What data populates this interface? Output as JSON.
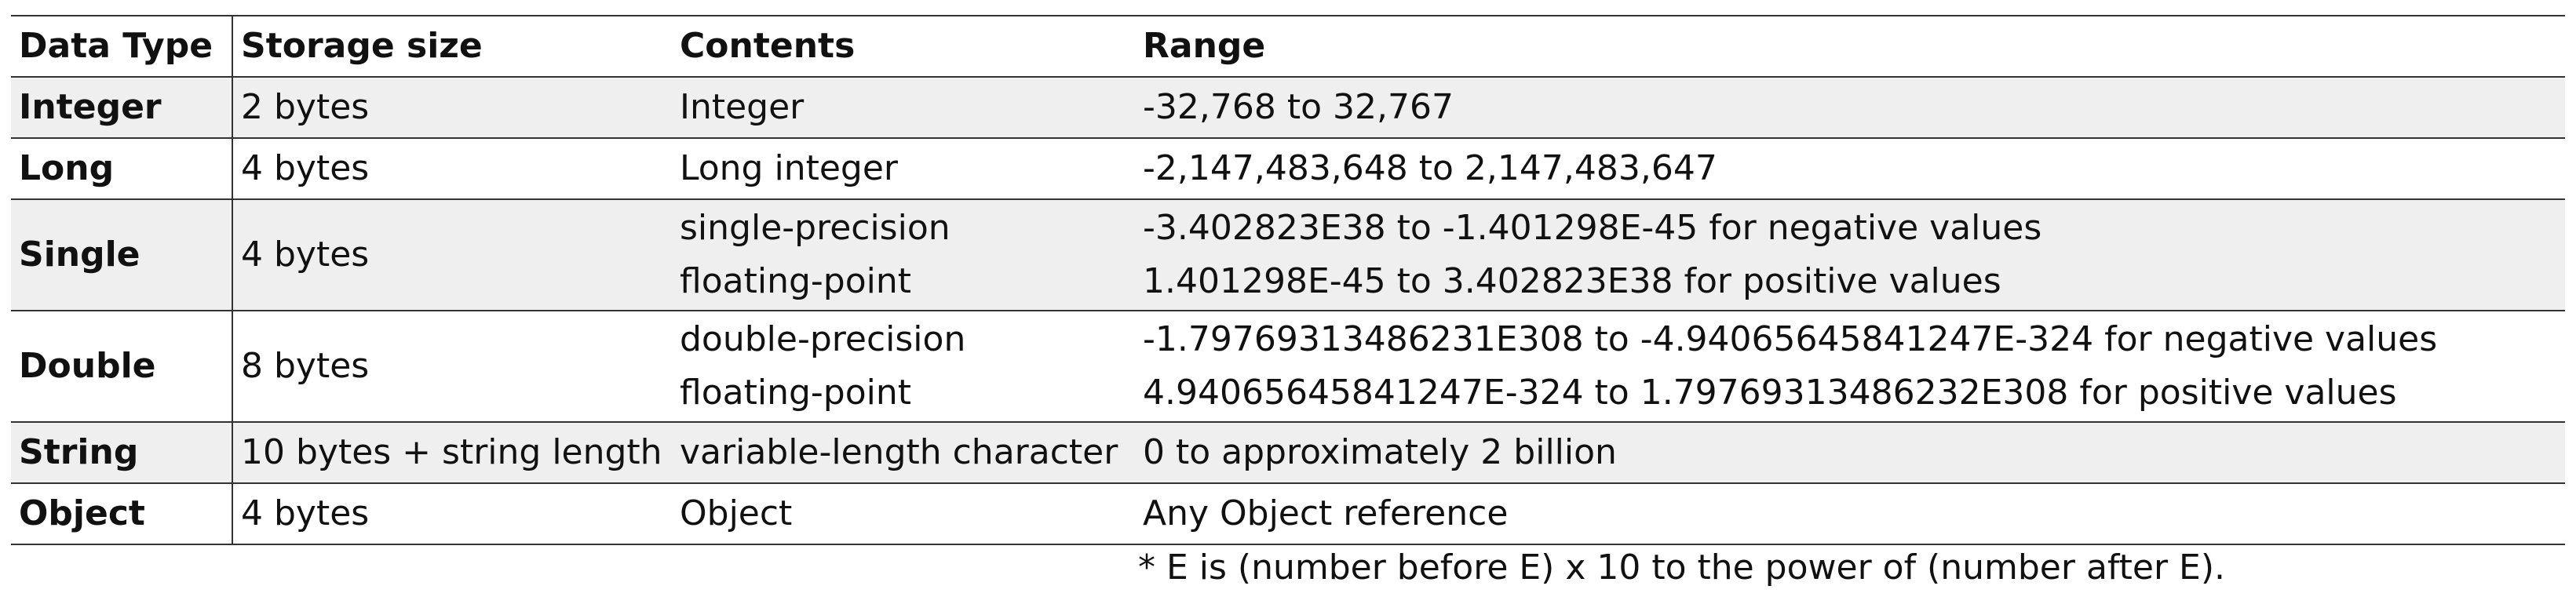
{
  "table": {
    "headers": {
      "type": "Data Type",
      "storage": "Storage size",
      "contents": "Contents",
      "range": "Range"
    },
    "rows": [
      {
        "type": "Integer",
        "storage": "2 bytes",
        "contents": [
          "Integer"
        ],
        "range": [
          "-32,768 to 32,767"
        ]
      },
      {
        "type": "Long",
        "storage": "4 bytes",
        "contents": [
          "Long integer"
        ],
        "range": [
          "-2,147,483,648 to 2,147,483,647"
        ]
      },
      {
        "type": "Single",
        "storage": "4 bytes",
        "contents": [
          "single-precision",
          "floating-point"
        ],
        "range": [
          "-3.402823E38 to -1.401298E-45 for negative values",
          "1.401298E-45 to 3.402823E38 for positive values"
        ]
      },
      {
        "type": "Double",
        "storage": "8 bytes",
        "contents": [
          "double-precision",
          "floating-point"
        ],
        "range": [
          "-1.79769313486231E308 to -4.94065645841247E-324 for negative values",
          "4.94065645841247E-324 to 1.79769313486232E308 for positive values"
        ]
      },
      {
        "type": "String",
        "storage": "10 bytes + string length",
        "contents": [
          "variable-length character"
        ],
        "range": [
          "0 to approximately 2 billion"
        ]
      },
      {
        "type": "Object",
        "storage": "4 bytes",
        "contents": [
          "Object"
        ],
        "range": [
          "Any Object reference"
        ]
      }
    ]
  },
  "footnote": "* E is (number before E) x 10 to the power of (number after E).",
  "colors": {
    "shaded_row": "#efefef",
    "rule": "#333333",
    "text": "#111111"
  }
}
